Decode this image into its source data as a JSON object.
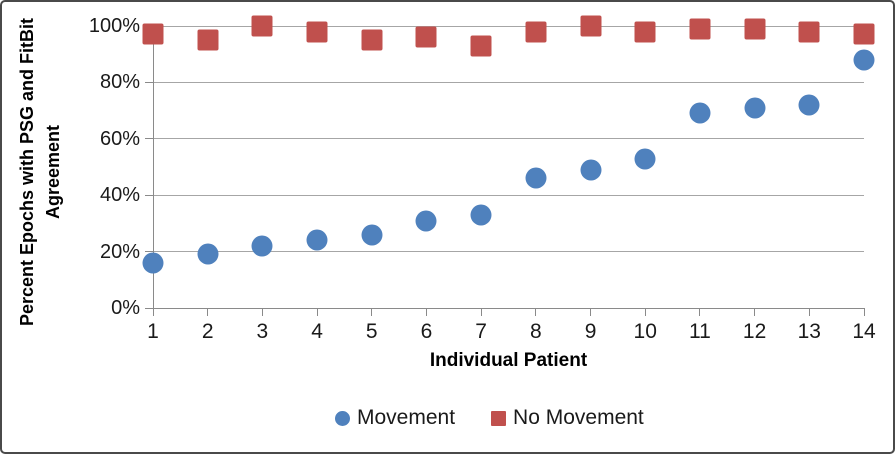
{
  "chart_data": {
    "type": "scatter",
    "title": "",
    "xlabel": "Individual Patient",
    "ylabel": "Percent Epochs with PSG and FitBit Agreement",
    "ylabel_lines": [
      "Percent Epochs with PSG and FitBit",
      "Agreement"
    ],
    "categories": [
      "1",
      "2",
      "3",
      "4",
      "5",
      "6",
      "7",
      "8",
      "9",
      "10",
      "11",
      "12",
      "13",
      "14"
    ],
    "series": [
      {
        "name": "Movement",
        "marker": "circle",
        "color": "#4F81BD",
        "values": [
          16,
          19,
          22,
          24,
          26,
          31,
          33,
          46,
          49,
          53,
          69,
          71,
          72,
          88
        ]
      },
      {
        "name": "No Movement",
        "marker": "square",
        "color": "#C0504D",
        "values": [
          97,
          95,
          100,
          98,
          95,
          96,
          93,
          98,
          100,
          98,
          99,
          99,
          98,
          97
        ]
      }
    ],
    "ylim": [
      0,
      100
    ],
    "yticks": [
      0,
      20,
      40,
      60,
      80,
      100
    ],
    "ytick_labels": [
      "0%",
      "20%",
      "40%",
      "60%",
      "80%",
      "100%"
    ],
    "grid": true,
    "legend_position": "bottom"
  },
  "colors": {
    "gridline": "#a6a6a6",
    "axis": "#8a8a8a",
    "border": "#4a4a4a",
    "text": "#1a1a1a"
  }
}
